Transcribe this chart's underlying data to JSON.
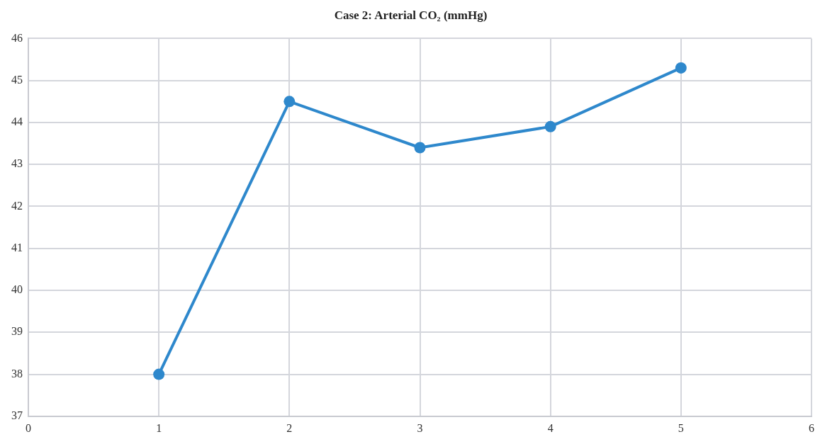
{
  "chart_data": {
    "type": "line",
    "title": "Case 2: Arterial CO₂ (mmHg)",
    "x": [
      1,
      2,
      3,
      4,
      5
    ],
    "series": [
      {
        "color": "#2e88cc",
        "values": [
          38.0,
          44.5,
          43.4,
          43.9,
          45.3
        ]
      }
    ],
    "xlim": [
      0,
      6
    ],
    "xticks": [
      0,
      1,
      2,
      3,
      4,
      5,
      6
    ],
    "ylim": [
      37,
      46
    ],
    "yticks": [
      37,
      38,
      39,
      40,
      41,
      42,
      43,
      44,
      45,
      46
    ],
    "grid": true,
    "legend": false,
    "marker": "circle",
    "line_style": "solid"
  }
}
